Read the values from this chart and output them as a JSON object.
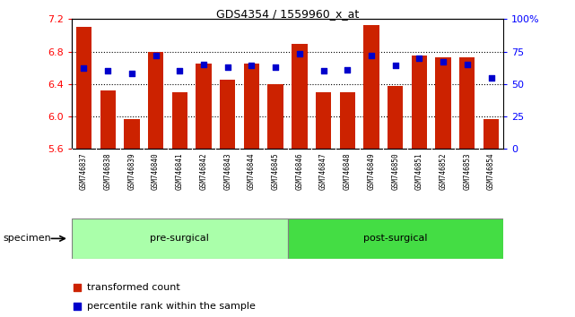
{
  "title": "GDS4354 / 1559960_x_at",
  "samples": [
    "GSM746837",
    "GSM746838",
    "GSM746839",
    "GSM746840",
    "GSM746841",
    "GSM746842",
    "GSM746843",
    "GSM746844",
    "GSM746845",
    "GSM746846",
    "GSM746847",
    "GSM746848",
    "GSM746849",
    "GSM746850",
    "GSM746851",
    "GSM746852",
    "GSM746853",
    "GSM746854"
  ],
  "bar_values": [
    7.1,
    6.32,
    5.97,
    6.79,
    6.3,
    6.65,
    6.45,
    6.65,
    6.4,
    6.89,
    6.3,
    6.3,
    7.13,
    6.38,
    6.75,
    6.73,
    6.73,
    5.97
  ],
  "percentile_values": [
    62,
    60,
    58,
    72,
    60,
    65,
    63,
    64,
    63,
    73,
    60,
    61,
    72,
    64,
    70,
    67,
    65,
    55
  ],
  "groups": [
    {
      "label": "pre-surgical",
      "start": 0,
      "end": 9,
      "color": "#AAFFAA"
    },
    {
      "label": "post-surgical",
      "start": 9,
      "end": 18,
      "color": "#44DD44"
    }
  ],
  "bar_color": "#CC2200",
  "dot_color": "#0000CC",
  "ylim_left": [
    5.6,
    7.2
  ],
  "ylim_right": [
    0,
    100
  ],
  "yticks_left": [
    5.6,
    6.0,
    6.4,
    6.8,
    7.2
  ],
  "yticks_right": [
    0,
    25,
    50,
    75,
    100
  ],
  "grid_values": [
    6.0,
    6.4,
    6.8
  ],
  "bar_width": 0.65,
  "legend_items": [
    {
      "label": "transformed count",
      "color": "#CC2200"
    },
    {
      "label": "percentile rank within the sample",
      "color": "#0000CC"
    }
  ]
}
